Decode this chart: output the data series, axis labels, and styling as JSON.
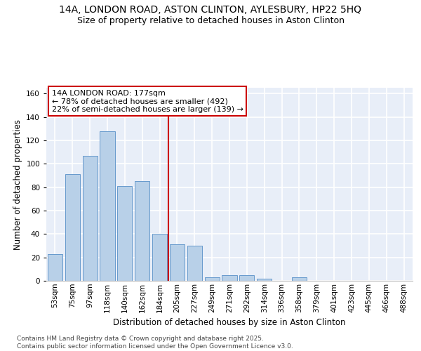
{
  "title_line1": "14A, LONDON ROAD, ASTON CLINTON, AYLESBURY, HP22 5HQ",
  "title_line2": "Size of property relative to detached houses in Aston Clinton",
  "xlabel": "Distribution of detached houses by size in Aston Clinton",
  "ylabel": "Number of detached properties",
  "categories": [
    "53sqm",
    "75sqm",
    "97sqm",
    "118sqm",
    "140sqm",
    "162sqm",
    "184sqm",
    "205sqm",
    "227sqm",
    "249sqm",
    "271sqm",
    "292sqm",
    "314sqm",
    "336sqm",
    "358sqm",
    "379sqm",
    "401sqm",
    "423sqm",
    "445sqm",
    "466sqm",
    "488sqm"
  ],
  "values": [
    23,
    91,
    107,
    128,
    81,
    85,
    40,
    31,
    30,
    3,
    5,
    5,
    2,
    0,
    3,
    0,
    0,
    0,
    0,
    0,
    0
  ],
  "bar_color": "#b8d0e8",
  "bar_edge_color": "#6699cc",
  "vline_x_index": 6.5,
  "vline_color": "#cc0000",
  "annotation_text": "14A LONDON ROAD: 177sqm\n← 78% of detached houses are smaller (492)\n22% of semi-detached houses are larger (139) →",
  "annotation_box_color": "#ffffff",
  "annotation_box_edge_color": "#cc0000",
  "ylim": [
    0,
    165
  ],
  "yticks": [
    0,
    20,
    40,
    60,
    80,
    100,
    120,
    140,
    160
  ],
  "background_color": "#e8eef8",
  "grid_color": "#ffffff",
  "footer_text": "Contains HM Land Registry data © Crown copyright and database right 2025.\nContains public sector information licensed under the Open Government Licence v3.0.",
  "title_fontsize": 10,
  "subtitle_fontsize": 9,
  "axis_label_fontsize": 8.5,
  "tick_fontsize": 7.5,
  "annotation_fontsize": 8,
  "footer_fontsize": 6.5
}
